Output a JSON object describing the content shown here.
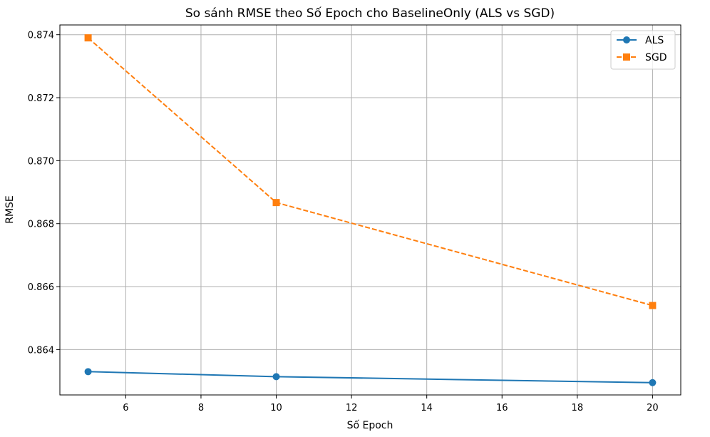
{
  "chart_data": {
    "type": "line",
    "title": "So sánh RMSE theo Số Epoch cho BaselineOnly (ALS vs SGD)",
    "xlabel": "Số Epoch",
    "ylabel": "RMSE",
    "x": [
      5,
      10,
      20
    ],
    "xlim": [
      4.25,
      20.75
    ],
    "ylim": [
      0.86256,
      0.87431
    ],
    "xticks": [
      6,
      8,
      10,
      12,
      14,
      16,
      18,
      20
    ],
    "yticks": [
      0.864,
      0.866,
      0.868,
      0.87,
      0.872,
      0.874
    ],
    "ytick_labels": [
      "0.864",
      "0.866",
      "0.868",
      "0.870",
      "0.872",
      "0.874"
    ],
    "grid": true,
    "legend_position": "top-right",
    "series": [
      {
        "name": "ALS",
        "values": [
          0.8633,
          0.86314,
          0.86295
        ],
        "color": "#1f77b4",
        "marker": "circle",
        "line_style": "solid"
      },
      {
        "name": "SGD",
        "values": [
          0.8739,
          0.86867,
          0.8654
        ],
        "color": "#ff7f0e",
        "marker": "square",
        "line_style": "dashed"
      }
    ]
  }
}
